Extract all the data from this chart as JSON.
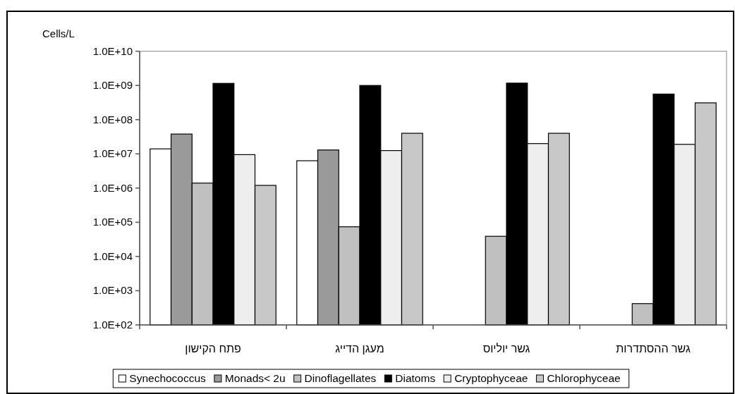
{
  "chart_data": {
    "type": "bar",
    "ylabel": "Cells/L",
    "log": true,
    "categories": [
      "פתח הקישון",
      "מעגן הדייג",
      "גשר יוליוס",
      "גשר ההסתדרות"
    ],
    "series": [
      {
        "name": "Synechococcus",
        "color": "#ffffff",
        "values": [
          14000000,
          6300000,
          null,
          null
        ]
      },
      {
        "name": "Monads< 2u",
        "color": "#9a9a9a",
        "values": [
          38000000,
          13000000,
          null,
          null
        ]
      },
      {
        "name": "Dinoflagellates",
        "color": "#c0c0c0",
        "values": [
          1400000,
          74000,
          39000,
          420
        ]
      },
      {
        "name": "Diatoms",
        "color": "#000000",
        "values": [
          1150000000,
          1000000000,
          1170000000,
          560000000
        ]
      },
      {
        "name": "Cryptophyceae",
        "color": "#eeeeee",
        "values": [
          9500000,
          12500000,
          20000000,
          19000000
        ]
      },
      {
        "name": "Chlorophyceae",
        "color": "#c8c8c8",
        "values": [
          1200000,
          40000000,
          40000000,
          310000000
        ]
      }
    ],
    "ylim": [
      100,
      10000000000
    ],
    "yticks": [
      {
        "value": 100,
        "label": "1.0E+02"
      },
      {
        "value": 1000,
        "label": "1.0E+03"
      },
      {
        "value": 10000,
        "label": "1.0E+04"
      },
      {
        "value": 100000,
        "label": "1.0E+05"
      },
      {
        "value": 1000000,
        "label": "1.0E+06"
      },
      {
        "value": 10000000,
        "label": "1.0E+07"
      },
      {
        "value": 100000000,
        "label": "1.0E+08"
      },
      {
        "value": 1000000000,
        "label": "1.0E+09"
      },
      {
        "value": 10000000000,
        "label": "1.0E+10"
      }
    ],
    "grid": false,
    "legend": "bottom"
  }
}
